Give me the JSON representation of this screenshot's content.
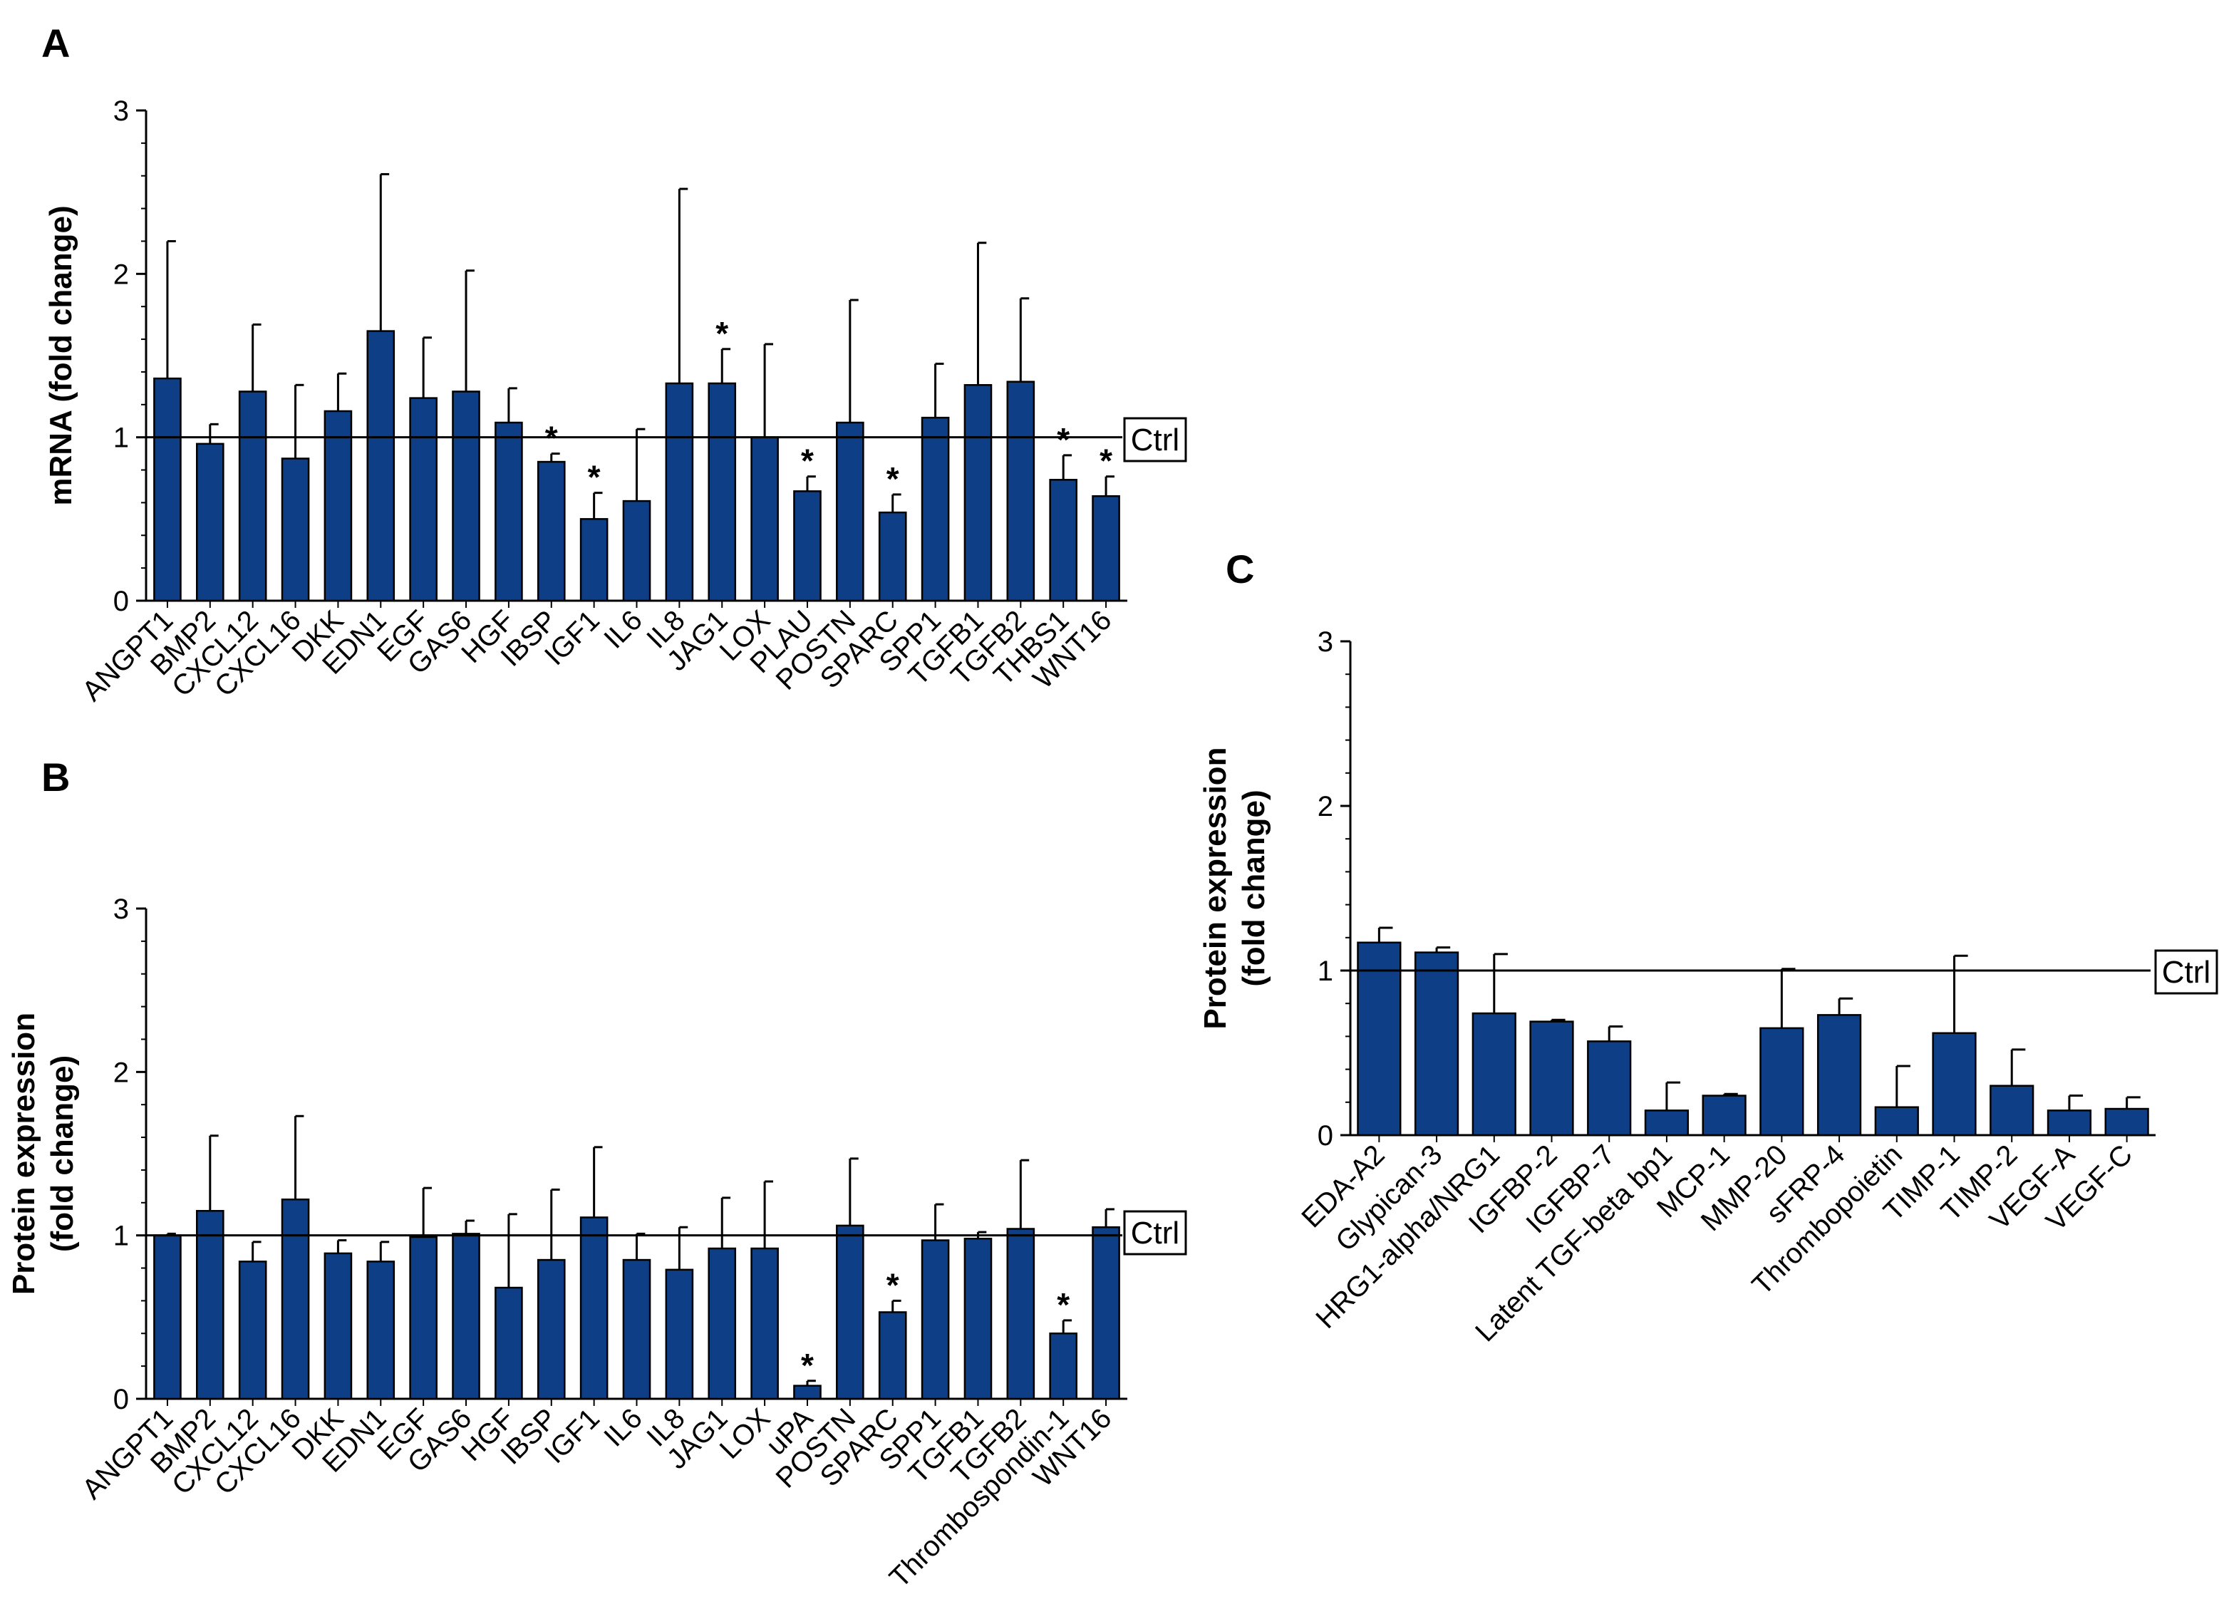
{
  "colors": {
    "bar": "#0d3e86",
    "axis": "#000000",
    "background": "#ffffff"
  },
  "chart_data": [
    {
      "panel": "A",
      "type": "bar",
      "ylabel": "mRNA (fold change)",
      "ylim": [
        0,
        3
      ],
      "yticks": [
        "0",
        "1",
        "2",
        "3"
      ],
      "reference_line": {
        "value": 1,
        "label": "Ctrl"
      },
      "categories": [
        "ANGPT1",
        "BMP2",
        "CXCL12",
        "CXCL16",
        "DKK",
        "EDN1",
        "EGF",
        "GAS6",
        "HGF",
        "IBSP",
        "IGF1",
        "IL6",
        "IL8",
        "JAG1",
        "LOX",
        "PLAU",
        "POSTN",
        "SPARC",
        "SPP1",
        "TGFB1",
        "TGFB2",
        "THBS1",
        "WNT16"
      ],
      "values": [
        1.36,
        0.96,
        1.28,
        0.87,
        1.16,
        1.65,
        1.24,
        1.28,
        1.09,
        0.85,
        0.5,
        0.61,
        1.33,
        1.33,
        1.0,
        0.67,
        1.09,
        0.54,
        1.12,
        1.32,
        1.34,
        0.74,
        0.64
      ],
      "errors": [
        0.84,
        0.12,
        0.41,
        0.45,
        0.23,
        0.96,
        0.37,
        0.74,
        0.21,
        0.05,
        0.16,
        0.44,
        1.19,
        0.21,
        0.57,
        0.09,
        0.75,
        0.11,
        0.33,
        0.87,
        0.51,
        0.15,
        0.12
      ],
      "significance": [
        "",
        "",
        "",
        "",
        "",
        "",
        "",
        "",
        "",
        "*",
        "*",
        "",
        "",
        "*",
        "",
        "*",
        "",
        "*",
        "",
        "",
        "",
        "*",
        "*"
      ]
    },
    {
      "panel": "B",
      "type": "bar",
      "ylabel": "Protein expression (fold change)",
      "ylabel_lines": [
        "Protein expression",
        "(fold change)"
      ],
      "ylim": [
        0,
        3
      ],
      "yticks": [
        "0",
        "1",
        "2",
        "3"
      ],
      "reference_line": {
        "value": 1,
        "label": "Ctrl"
      },
      "categories": [
        "ANGPT1",
        "BMP2",
        "CXCL12",
        "CXCL16",
        "DKK",
        "EDN1",
        "EGF",
        "GAS6",
        "HGF",
        "IBSP",
        "IGF1",
        "IL6",
        "IL8",
        "JAG1",
        "LOX",
        "uPA",
        "POSTN",
        "SPARC",
        "SPP1",
        "TGFB1",
        "TGFB2",
        "Thrombospondin-1",
        "WNT16"
      ],
      "values": [
        1.0,
        1.15,
        0.84,
        1.22,
        0.89,
        0.84,
        0.99,
        1.01,
        0.68,
        0.85,
        1.11,
        0.85,
        0.79,
        0.92,
        0.92,
        0.08,
        1.06,
        0.53,
        0.97,
        0.98,
        1.04,
        0.4,
        1.05
      ],
      "errors": [
        0.01,
        0.46,
        0.12,
        0.51,
        0.08,
        0.12,
        0.3,
        0.08,
        0.45,
        0.43,
        0.43,
        0.16,
        0.26,
        0.31,
        0.41,
        0.03,
        0.41,
        0.07,
        0.22,
        0.04,
        0.42,
        0.08,
        0.11
      ],
      "significance": [
        "",
        "",
        "",
        "",
        "",
        "",
        "",
        "",
        "",
        "",
        "",
        "",
        "",
        "",
        "",
        "*",
        "",
        "*",
        "",
        "",
        "",
        "*",
        ""
      ]
    },
    {
      "panel": "C",
      "type": "bar",
      "ylabel": "Protein expression (fold change)",
      "ylabel_lines": [
        "Protein expression",
        "(fold change)"
      ],
      "ylim": [
        0,
        3
      ],
      "yticks": [
        "0",
        "1",
        "2",
        "3"
      ],
      "reference_line": {
        "value": 1,
        "label": "Ctrl"
      },
      "categories": [
        "EDA-A2",
        "Glypican-3",
        "HRG1-alpha/NRG1",
        "IGFBP-2",
        "IGFBP-7",
        "Latent TGF-beta bp1",
        "MCP-1",
        "MMP-20",
        "sFRP-4",
        "Thrombopoietin",
        "TIMP-1",
        "TIMP-2",
        "VEGF-A",
        "VEGF-C"
      ],
      "values": [
        1.17,
        1.11,
        0.74,
        0.69,
        0.57,
        0.15,
        0.24,
        0.65,
        0.73,
        0.17,
        0.62,
        0.3,
        0.15,
        0.16
      ],
      "errors": [
        0.09,
        0.03,
        0.36,
        0.01,
        0.09,
        0.17,
        0.01,
        0.36,
        0.1,
        0.25,
        0.47,
        0.22,
        0.09,
        0.07
      ],
      "significance": [
        "",
        "",
        "",
        "",
        "",
        "",
        "",
        "",
        "",
        "",
        "",
        "",
        "",
        ""
      ]
    }
  ]
}
